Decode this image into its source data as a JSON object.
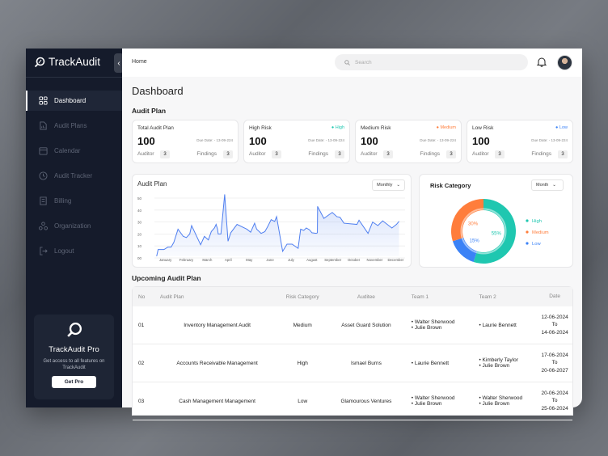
{
  "app": {
    "name": "TrackAudit"
  },
  "sidebar": {
    "items": [
      {
        "label": "Dashboard",
        "icon": "grid-icon",
        "active": true
      },
      {
        "label": "Audit Plans",
        "icon": "report-icon"
      },
      {
        "label": "Calendar",
        "icon": "calendar-icon"
      },
      {
        "label": "Audit Tracker",
        "icon": "clock-icon"
      },
      {
        "label": "Billing",
        "icon": "bill-icon"
      },
      {
        "label": "Organization",
        "icon": "org-icon"
      },
      {
        "label": "Logout",
        "icon": "logout-icon"
      }
    ],
    "pro": {
      "title": "TrackAudit Pro",
      "desc": "Get access to all features on TrackAudit",
      "button": "Get Pro"
    }
  },
  "header": {
    "breadcrumb": "Home",
    "search_placeholder": "Search"
  },
  "page": {
    "title": "Dashboard",
    "audit_plan_heading": "Audit Plan",
    "upcoming_heading": "Upcoming Audit Plan"
  },
  "kpis": [
    {
      "name": "Total Audit Plan",
      "badge": "",
      "value": "100",
      "due": "Due Date: - 13-09-224",
      "auditor_label": "Auditor",
      "auditor": "3",
      "findings_label": "Findings",
      "findings": "3"
    },
    {
      "name": "High Risk",
      "badge": "High",
      "badge_color": "#1fc7b0",
      "value": "100",
      "due": "Due Date: - 13-09-224",
      "auditor_label": "Auditor",
      "auditor": "3",
      "findings_label": "Findings",
      "findings": "3"
    },
    {
      "name": "Medium Risk",
      "badge": "Medium",
      "badge_color": "#ff7d3b",
      "value": "100",
      "due": "Due Date: - 13-09-224",
      "auditor_label": "Auditor",
      "auditor": "3",
      "findings_label": "Findings",
      "findings": "3"
    },
    {
      "name": "Low Risk",
      "badge": "Low",
      "badge_color": "#3b82f6",
      "value": "100",
      "due": "Due Date: - 13-09-224",
      "auditor_label": "Auditor",
      "auditor": "3",
      "findings_label": "Findings",
      "findings": "3"
    }
  ],
  "chart_data": [
    {
      "type": "area",
      "title": "Audit Plan",
      "period_select": "Monthly",
      "ylim": [
        0,
        50
      ],
      "yticks": [
        "00",
        "10",
        "20",
        "30",
        "40",
        "50"
      ],
      "categories": [
        "January",
        "February",
        "March",
        "April",
        "May",
        "June",
        "July",
        "August",
        "September",
        "October",
        "November",
        "December"
      ],
      "points": [
        [
          -0.42,
          1.5
        ],
        [
          -0.35,
          7
        ],
        [
          -0.07,
          7
        ],
        [
          0.11,
          9
        ],
        [
          0.27,
          9
        ],
        [
          0.4,
          13
        ],
        [
          0.6,
          24
        ],
        [
          0.85,
          18
        ],
        [
          1.0,
          17
        ],
        [
          1.16,
          20
        ],
        [
          1.25,
          27
        ],
        [
          1.68,
          11
        ],
        [
          1.86,
          18
        ],
        [
          2.05,
          15
        ],
        [
          2.19,
          22
        ],
        [
          2.34,
          25
        ],
        [
          2.42,
          28
        ],
        [
          2.49,
          24
        ],
        [
          2.52,
          20
        ],
        [
          2.65,
          20
        ],
        [
          2.83,
          53
        ],
        [
          2.99,
          14
        ],
        [
          3.12,
          21
        ],
        [
          3.42,
          28
        ],
        [
          3.89,
          24
        ],
        [
          4.07,
          21.5
        ],
        [
          4.26,
          29
        ],
        [
          4.36,
          24
        ],
        [
          4.57,
          20.5
        ],
        [
          4.75,
          22
        ],
        [
          4.88,
          26
        ],
        [
          5.05,
          32
        ],
        [
          5.22,
          30.5
        ],
        [
          5.31,
          34.5
        ],
        [
          5.6,
          5.5
        ],
        [
          5.81,
          11.5
        ],
        [
          6.05,
          11.5
        ],
        [
          6.34,
          8
        ],
        [
          6.46,
          24
        ],
        [
          6.61,
          23
        ],
        [
          6.73,
          25
        ],
        [
          6.88,
          23.5
        ],
        [
          7.0,
          21
        ],
        [
          7.2,
          20.5
        ],
        [
          7.26,
          21
        ],
        [
          7.27,
          43
        ],
        [
          7.57,
          33
        ],
        [
          7.97,
          38
        ],
        [
          8.19,
          34.5
        ],
        [
          8.34,
          34
        ],
        [
          8.53,
          29
        ],
        [
          9.15,
          28
        ],
        [
          9.25,
          31.5
        ],
        [
          9.68,
          20.5
        ],
        [
          9.9,
          30
        ],
        [
          10.15,
          27
        ],
        [
          10.38,
          31
        ],
        [
          10.82,
          25
        ],
        [
          11.04,
          28
        ],
        [
          11.16,
          30.5
        ]
      ],
      "color": "#4f7ff0",
      "grid": true
    },
    {
      "type": "pie",
      "title": "Risk Category",
      "period_select": "Month",
      "slices": [
        {
          "name": "High",
          "value": 55,
          "label": "55%",
          "color": "#1fc7b0"
        },
        {
          "name": "Low",
          "value": 15,
          "label": "15%",
          "color": "#3b82f6"
        },
        {
          "name": "Medium",
          "value": 30,
          "label": "30%",
          "color": "#ff7d3b"
        }
      ],
      "legend": "right"
    }
  ],
  "table": {
    "headers": [
      "No",
      "Audit Plan",
      "Risk Category",
      "Auditee",
      "Team 1",
      "Team 2",
      "Date"
    ],
    "rows": [
      {
        "no": "01",
        "plan": "Inventory Management Audit",
        "risk": "Medium",
        "auditee": "Asset Guard Solution",
        "team1": [
          "Walter Sherwood",
          "Julie Brown"
        ],
        "team2": [
          "Laurie Bennett"
        ],
        "from": "12-06-2024",
        "to_label": "To",
        "to": "14-06-2024"
      },
      {
        "no": "02",
        "plan": "Accounts Receivable Management",
        "risk": "High",
        "auditee": "Ismael Burns",
        "team1": [
          "Laurie Bennett"
        ],
        "team2": [
          "Kimberly Taylor",
          "Julie Brown"
        ],
        "from": "17-06-2024",
        "to_label": "To",
        "to": "20-06-2027"
      },
      {
        "no": "03",
        "plan": "Cash Management Management",
        "risk": "Low",
        "auditee": "Glamourous Ventures",
        "team1": [
          "Walter Sherwood",
          "Julie Brown"
        ],
        "team2": [
          "Walter Sherwood",
          "Julie Brown"
        ],
        "from": "20-06-2024",
        "to_label": "To",
        "to": "25-06-2024"
      }
    ]
  }
}
